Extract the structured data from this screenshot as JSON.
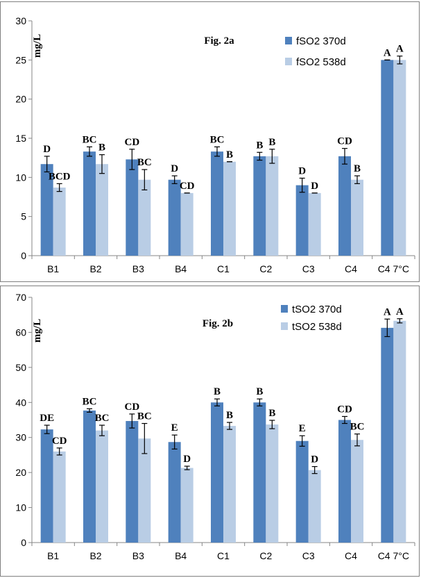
{
  "chart_data": [
    {
      "type": "bar",
      "title": "Fig. 2a",
      "ylabel": "mg/L",
      "ylim": [
        0,
        30
      ],
      "yticks": [
        0,
        5,
        10,
        15,
        20,
        25,
        30
      ],
      "categories": [
        "B1",
        "B2",
        "B3",
        "B4",
        "C1",
        "C2",
        "C3",
        "C4",
        "C4 7°C"
      ],
      "legend_position": "top-right",
      "series": [
        {
          "name": "fSO2 370d",
          "color": "#4f81bd",
          "values": [
            11.7,
            13.3,
            12.3,
            9.7,
            13.3,
            12.7,
            9.0,
            12.7,
            25.0
          ],
          "errors": [
            1.0,
            0.6,
            1.3,
            0.5,
            0.6,
            0.5,
            0.9,
            1.0,
            0.0
          ],
          "labels": [
            "D",
            "BC",
            "CD",
            "D",
            "BC",
            "B",
            "D",
            "CD",
            "A"
          ]
        },
        {
          "name": "fSO2 538d",
          "color": "#b9cde5",
          "values": [
            8.7,
            11.7,
            9.7,
            8.0,
            12.0,
            12.7,
            8.0,
            9.7,
            25.0
          ],
          "errors": [
            0.5,
            1.2,
            1.3,
            0.0,
            0.0,
            0.9,
            0.0,
            0.5,
            0.5
          ],
          "labels": [
            "BCD",
            "B",
            "BC",
            "CD",
            "B",
            "B",
            "D",
            "B",
            "A"
          ]
        }
      ]
    },
    {
      "type": "bar",
      "title": "Fig. 2b",
      "ylabel": "mg/L",
      "ylim": [
        0,
        70
      ],
      "yticks": [
        0,
        10,
        20,
        30,
        40,
        50,
        60,
        70
      ],
      "categories": [
        "B1",
        "B2",
        "B3",
        "B4",
        "C1",
        "C2",
        "C3",
        "C4",
        "C4 7°C"
      ],
      "legend_position": "top-right",
      "series": [
        {
          "name": "tSO2 370d",
          "color": "#4f81bd",
          "values": [
            32.3,
            37.7,
            34.7,
            28.7,
            40.0,
            40.0,
            29.0,
            35.0,
            61.3
          ],
          "errors": [
            1.2,
            0.5,
            2.0,
            2.0,
            1.0,
            1.0,
            1.5,
            1.0,
            2.5
          ],
          "labels": [
            "DE",
            "BC",
            "CD",
            "E",
            "B",
            "B",
            "E",
            "CD",
            "A"
          ]
        },
        {
          "name": "tSO2 538d",
          "color": "#b9cde5",
          "values": [
            26.0,
            32.0,
            29.7,
            21.3,
            33.3,
            33.7,
            20.7,
            29.3,
            63.3
          ],
          "errors": [
            1.0,
            1.5,
            4.3,
            0.5,
            1.0,
            1.2,
            1.0,
            1.7,
            0.6
          ],
          "labels": [
            "CD",
            "BC",
            "BC",
            "D",
            "B",
            "B",
            "D",
            "BC",
            "A"
          ]
        }
      ]
    }
  ]
}
